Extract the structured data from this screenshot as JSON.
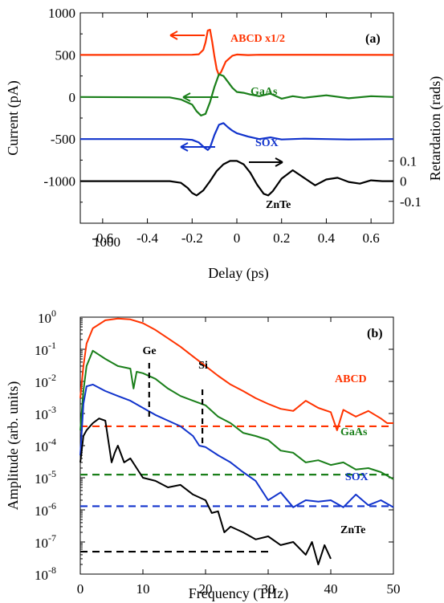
{
  "chart_data": [
    {
      "type": "line",
      "panel_label": "(a)",
      "xlabel": "Delay (ps)",
      "ylabel": "Current (pA)",
      "ylabel_right": "Retardation (rads)",
      "xlim": [
        -0.7,
        0.7
      ],
      "ylim": [
        -1500,
        1000
      ],
      "x_ticks": [
        "-0.6",
        "-0.4",
        "-0.2",
        "0",
        "0.2",
        "0.4",
        "0.6"
      ],
      "y_ticks": [
        "1000",
        "500",
        "0",
        "-500",
        "-1000",
        "-1500"
      ],
      "y2_ticks": [
        "0.1",
        "0",
        "-0.1"
      ],
      "series": [
        {
          "name": "ABCD x1/2",
          "color": "#ff3300",
          "axis": "left",
          "baseline": 500,
          "x": [
            -0.7,
            -0.2,
            -0.17,
            -0.15,
            -0.14,
            -0.13,
            -0.12,
            -0.11,
            -0.1,
            -0.09,
            -0.08,
            -0.07,
            -0.05,
            -0.02,
            0.0,
            0.05,
            0.1,
            0.7
          ],
          "y": [
            500,
            502,
            508,
            560,
            650,
            790,
            800,
            650,
            480,
            330,
            260,
            300,
            420,
            490,
            505,
            498,
            502,
            500
          ]
        },
        {
          "name": "GaAs",
          "color": "#1a7f1a",
          "axis": "left",
          "baseline": 0,
          "x": [
            -0.7,
            -0.3,
            -0.25,
            -0.2,
            -0.18,
            -0.16,
            -0.14,
            -0.12,
            -0.1,
            -0.08,
            -0.06,
            -0.04,
            -0.02,
            0.0,
            0.03,
            0.06,
            0.1,
            0.15,
            0.2,
            0.25,
            0.3,
            0.4,
            0.5,
            0.6,
            0.7
          ],
          "y": [
            0,
            -5,
            -30,
            -90,
            -170,
            -220,
            -200,
            -60,
            120,
            270,
            250,
            180,
            110,
            60,
            50,
            30,
            10,
            40,
            -20,
            10,
            -10,
            20,
            -15,
            10,
            0
          ]
        },
        {
          "name": "SOX",
          "color": "#1133cc",
          "axis": "left",
          "baseline": -500,
          "x": [
            -0.7,
            -0.25,
            -0.2,
            -0.17,
            -0.15,
            -0.13,
            -0.12,
            -0.1,
            -0.08,
            -0.06,
            -0.04,
            -0.02,
            0.0,
            0.05,
            0.1,
            0.15,
            0.2,
            0.3,
            0.4,
            0.5,
            0.7
          ],
          "y": [
            -500,
            -500,
            -510,
            -540,
            -590,
            -630,
            -600,
            -450,
            -330,
            -310,
            -360,
            -400,
            -430,
            -470,
            -500,
            -480,
            -505,
            -495,
            -500,
            -505,
            -500
          ]
        },
        {
          "name": "ZnTe",
          "color": "#000000",
          "axis": "right",
          "baseline": -1000,
          "x": [
            -0.7,
            -0.3,
            -0.25,
            -0.22,
            -0.2,
            -0.18,
            -0.15,
            -0.12,
            -0.09,
            -0.06,
            -0.03,
            0.0,
            0.03,
            0.06,
            0.09,
            0.12,
            0.14,
            0.16,
            0.2,
            0.25,
            0.3,
            0.35,
            0.4,
            0.45,
            0.5,
            0.55,
            0.6,
            0.65,
            0.7
          ],
          "y": [
            -1000,
            -1000,
            -1020,
            -1080,
            -1140,
            -1170,
            -1110,
            -1000,
            -880,
            -800,
            -760,
            -760,
            -800,
            -900,
            -1040,
            -1150,
            -1170,
            -1120,
            -970,
            -870,
            -960,
            -1050,
            -980,
            -960,
            -1010,
            -1030,
            -990,
            -1000,
            -1000
          ]
        }
      ],
      "annotations": [
        {
          "text": "ABCD x1/2",
          "arrow": "left"
        },
        {
          "text": "GaAs",
          "arrow": "left"
        },
        {
          "text": "SOX",
          "arrow": "left"
        },
        {
          "text": "ZnTe",
          "arrow": "right"
        }
      ]
    },
    {
      "type": "line",
      "panel_label": "(b)",
      "xlabel": "Frequency (THz)",
      "ylabel": "Amplitude (arb. units)",
      "y_scale": "log",
      "xlim": [
        0,
        50
      ],
      "ylim": [
        1e-08,
        1
      ],
      "x_ticks": [
        "0",
        "10",
        "20",
        "30",
        "40",
        "50"
      ],
      "y_ticks": [
        {
          "base": "10",
          "exp": "0"
        },
        {
          "base": "10",
          "exp": "-1"
        },
        {
          "base": "10",
          "exp": "-2"
        },
        {
          "base": "10",
          "exp": "-3"
        },
        {
          "base": "10",
          "exp": "-4"
        },
        {
          "base": "10",
          "exp": "-5"
        },
        {
          "base": "10",
          "exp": "-6"
        },
        {
          "base": "10",
          "exp": "-7"
        },
        {
          "base": "10",
          "exp": "-8"
        }
      ],
      "series": [
        {
          "name": "ABCD",
          "color": "#ff3300",
          "noise_floor": 0.0004,
          "x": [
            0,
            0.5,
            1,
            2,
            4,
            6,
            8,
            10,
            12,
            14,
            16,
            18,
            20,
            22,
            24,
            26,
            28,
            30,
            32,
            34,
            36,
            38,
            40,
            41,
            42,
            44,
            46,
            48,
            49,
            50
          ],
          "y": [
            0.003,
            0.03,
            0.15,
            0.45,
            0.8,
            0.9,
            0.85,
            0.65,
            0.4,
            0.22,
            0.12,
            0.06,
            0.03,
            0.015,
            0.008,
            0.005,
            0.003,
            0.002,
            0.0014,
            0.0012,
            0.0025,
            0.0015,
            0.0011,
            0.0003,
            0.0013,
            0.0008,
            0.0012,
            0.0007,
            0.0005,
            0.0005
          ]
        },
        {
          "name": "GaAs",
          "color": "#1a7f1a",
          "noise_floor": 1.25e-05,
          "x": [
            0,
            0.5,
            1,
            2,
            4,
            6,
            8,
            8.5,
            9,
            10,
            12,
            14,
            16,
            18,
            20,
            22,
            24,
            26,
            28,
            30,
            32,
            34,
            36,
            38,
            40,
            42,
            44,
            46,
            48,
            50
          ],
          "y": [
            0.0003,
            0.005,
            0.03,
            0.09,
            0.05,
            0.03,
            0.025,
            0.006,
            0.02,
            0.018,
            0.012,
            0.006,
            0.0035,
            0.0025,
            0.0018,
            0.0008,
            0.0005,
            0.00025,
            0.0002,
            0.00015,
            7e-05,
            6e-05,
            3e-05,
            3.5e-05,
            2.5e-05,
            3e-05,
            1.8e-05,
            2e-05,
            1.5e-05,
            9e-06
          ]
        },
        {
          "name": "SOX",
          "color": "#1133cc",
          "noise_floor": 1.3e-06,
          "x": [
            0,
            0.5,
            1,
            2,
            4,
            6,
            8,
            10,
            12,
            14,
            16,
            18,
            19,
            20,
            22,
            24,
            26,
            28,
            30,
            32,
            34,
            36,
            38,
            40,
            42,
            44,
            46,
            48,
            50
          ],
          "y": [
            5e-05,
            0.002,
            0.007,
            0.008,
            0.005,
            0.0035,
            0.0025,
            0.0015,
            0.0009,
            0.0006,
            0.0004,
            0.0002,
            0.0001,
            9e-05,
            5e-05,
            3e-05,
            1.5e-05,
            8e-06,
            2e-06,
            3.5e-06,
            1.2e-06,
            2e-06,
            1.8e-06,
            2e-06,
            1.2e-06,
            3e-06,
            1.4e-06,
            2e-06,
            1.2e-06
          ]
        },
        {
          "name": "ZnTe",
          "color": "#000000",
          "noise_floor": 5e-08,
          "x": [
            0,
            0.5,
            1,
            2,
            3,
            4,
            5,
            5.5,
            6,
            7,
            8,
            9,
            10,
            12,
            14,
            16,
            18,
            20,
            21,
            22,
            23,
            24,
            26,
            28,
            30,
            32,
            34,
            36,
            37,
            38,
            39,
            40
          ],
          "y": [
            3e-05,
            0.0002,
            0.0003,
            0.0005,
            0.0007,
            0.0006,
            3e-05,
            6e-05,
            0.0001,
            3e-05,
            4e-05,
            2e-05,
            1e-05,
            8e-06,
            5e-06,
            6e-06,
            3e-06,
            2e-06,
            8e-07,
            9e-07,
            2e-07,
            3e-07,
            2e-07,
            1.2e-07,
            1.5e-07,
            8e-08,
            1e-07,
            4e-08,
            1e-07,
            2e-08,
            8e-08,
            3e-08
          ]
        }
      ],
      "annotations": [
        {
          "text": "Ge",
          "x": 11
        },
        {
          "text": "Si",
          "x": 19.5
        },
        {
          "text": "ABCD"
        },
        {
          "text": "GaAs"
        },
        {
          "text": "SOX"
        },
        {
          "text": "ZnTe"
        }
      ]
    }
  ]
}
